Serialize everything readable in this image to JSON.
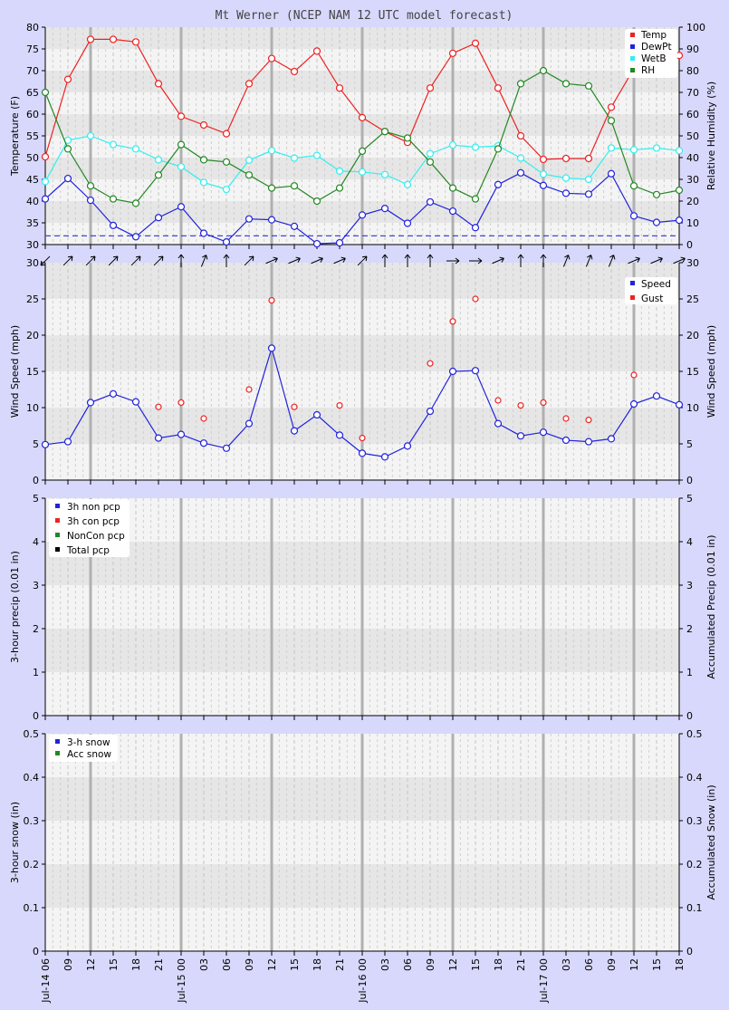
{
  "title": "Mt Werner (NCEP NAM 12 UTC model forecast)",
  "x_ticks": [
    "06",
    "09",
    "12",
    "15",
    "18",
    "21",
    "00",
    "03",
    "06",
    "09",
    "12",
    "15",
    "18",
    "21",
    "00",
    "03",
    "06",
    "09",
    "12",
    "15",
    "18",
    "21",
    "00",
    "03",
    "06",
    "09",
    "12",
    "15",
    "18"
  ],
  "date_labels": [
    {
      "index": 0,
      "label": "Jul-14 06"
    },
    {
      "index": 6,
      "label": "Jul-15 00"
    },
    {
      "index": 14,
      "label": "Jul-16 00"
    },
    {
      "index": 22,
      "label": "Jul-17 00"
    }
  ],
  "colors": {
    "temp": "#ee2222",
    "dewpt": "#2222dd",
    "wetb": "#33eeee",
    "rh": "#228822",
    "gust": "#ee2222",
    "speed": "#2222dd",
    "dashed": "#4444dd"
  },
  "chart_data": [
    {
      "type": "line",
      "title": "Temperature / Relative Humidity",
      "ylabel": "Temperature (F)",
      "ylabel_right": "Relative Humidity (%)",
      "ylim": [
        30,
        80
      ],
      "ylim_right": [
        0,
        100
      ],
      "y_ticks": [
        "30",
        "35",
        "40",
        "45",
        "50",
        "55",
        "60",
        "65",
        "70",
        "75",
        "80"
      ],
      "y_ticks_right": [
        "0",
        "10",
        "20",
        "30",
        "40",
        "50",
        "60",
        "70",
        "80",
        "90",
        "100"
      ],
      "legend": [
        "Temp",
        "DewPt",
        "WetB",
        "RH"
      ],
      "reference_line_F": 32,
      "series": [
        {
          "name": "Temp",
          "axis": "left",
          "values": [
            50.2,
            68.0,
            77.2,
            77.2,
            76.6,
            67.0,
            59.5,
            57.5,
            55.5,
            67.0,
            72.8,
            69.8,
            74.5,
            66.0,
            59.2,
            56.0,
            53.5,
            66.0,
            74.0,
            76.3,
            66.0,
            55.0,
            49.6,
            49.8,
            49.8,
            61.6,
            70.5,
            74.5,
            73.5
          ]
        },
        {
          "name": "DewPt",
          "axis": "left",
          "values": [
            40.5,
            45.2,
            40.2,
            34.4,
            31.8,
            36.2,
            38.7,
            32.6,
            30.6,
            35.9,
            35.7,
            34.2,
            30.2,
            30.4,
            36.8,
            38.3,
            34.9,
            39.8,
            37.7,
            33.9,
            43.8,
            46.5,
            43.6,
            41.8,
            41.6,
            46.3,
            36.6,
            35.1,
            35.6
          ]
        },
        {
          "name": "WetB",
          "axis": "left",
          "values": [
            44.5,
            54.0,
            55.0,
            53.0,
            52.0,
            49.5,
            47.9,
            44.3,
            42.7,
            49.4,
            51.6,
            49.9,
            50.5,
            46.9,
            46.7,
            46.1,
            43.8,
            50.9,
            52.9,
            52.4,
            52.7,
            49.9,
            46.2,
            45.3,
            45.0,
            52.2,
            51.8,
            52.2,
            51.6
          ]
        },
        {
          "name": "RH",
          "axis": "right",
          "values": [
            70,
            44,
            27,
            21,
            19,
            32,
            46,
            39,
            38,
            32,
            26,
            27,
            20,
            26,
            43,
            52,
            49,
            38,
            26,
            21,
            44,
            74,
            80,
            74,
            73,
            57,
            27,
            23,
            25
          ]
        }
      ]
    },
    {
      "type": "line",
      "title": "Wind",
      "ylabel": "Wind Speed (mph)",
      "ylabel_right": "Wind Speed (mph)",
      "ylim": [
        0,
        30
      ],
      "y_ticks": [
        "0",
        "5",
        "10",
        "15",
        "20",
        "25",
        "30"
      ],
      "legend": [
        "Speed",
        "Gust"
      ],
      "series": [
        {
          "name": "Speed",
          "values": [
            4.9,
            5.3,
            10.7,
            11.9,
            10.8,
            5.8,
            6.3,
            5.1,
            4.4,
            7.8,
            18.2,
            6.8,
            9.0,
            6.2,
            3.7,
            3.2,
            4.7,
            9.5,
            15.0,
            15.1,
            7.8,
            6.1,
            6.6,
            5.5,
            5.3,
            5.7,
            10.5,
            11.6,
            10.4
          ]
        },
        {
          "name": "Gust",
          "values": [
            null,
            null,
            null,
            null,
            null,
            10.1,
            10.7,
            8.5,
            null,
            12.5,
            24.8,
            10.1,
            null,
            10.3,
            5.8,
            null,
            null,
            16.1,
            21.9,
            25.0,
            11.0,
            10.3,
            10.7,
            8.5,
            8.3,
            null,
            14.5,
            null,
            null
          ]
        }
      ],
      "wind_direction_deg": [
        45,
        225,
        225,
        225,
        225,
        225,
        180,
        202,
        180,
        225,
        247,
        247,
        247,
        247,
        225,
        180,
        180,
        180,
        270,
        270,
        247,
        180,
        180,
        202,
        202,
        202,
        247,
        247,
        247
      ]
    },
    {
      "type": "line",
      "title": "Precipitation",
      "ylabel": "3-hour precip (0.01 in)",
      "ylabel_right": "Accumulated Precip (0.01 in)",
      "ylim": [
        0,
        5
      ],
      "y_ticks": [
        "0",
        "1",
        "2",
        "3",
        "4",
        "5"
      ],
      "legend": [
        "3h non pcp",
        "3h con pcp",
        "NonCon pcp",
        "Total pcp"
      ],
      "series": [
        {
          "name": "3h non pcp",
          "values": []
        },
        {
          "name": "3h con pcp",
          "values": []
        },
        {
          "name": "NonCon pcp",
          "values": []
        },
        {
          "name": "Total pcp",
          "values": []
        }
      ]
    },
    {
      "type": "line",
      "title": "Snow",
      "ylabel": "3-hour snow (in)",
      "ylabel_right": "Accumulated Snow (in)",
      "ylim": [
        0,
        0.5
      ],
      "y_ticks": [
        "0",
        "0.1",
        "0.2",
        "0.3",
        "0.4",
        "0.5"
      ],
      "legend": [
        "3-h snow",
        "Acc snow"
      ],
      "series": [
        {
          "name": "3-h snow",
          "values": []
        },
        {
          "name": "Acc snow",
          "values": []
        }
      ]
    }
  ]
}
